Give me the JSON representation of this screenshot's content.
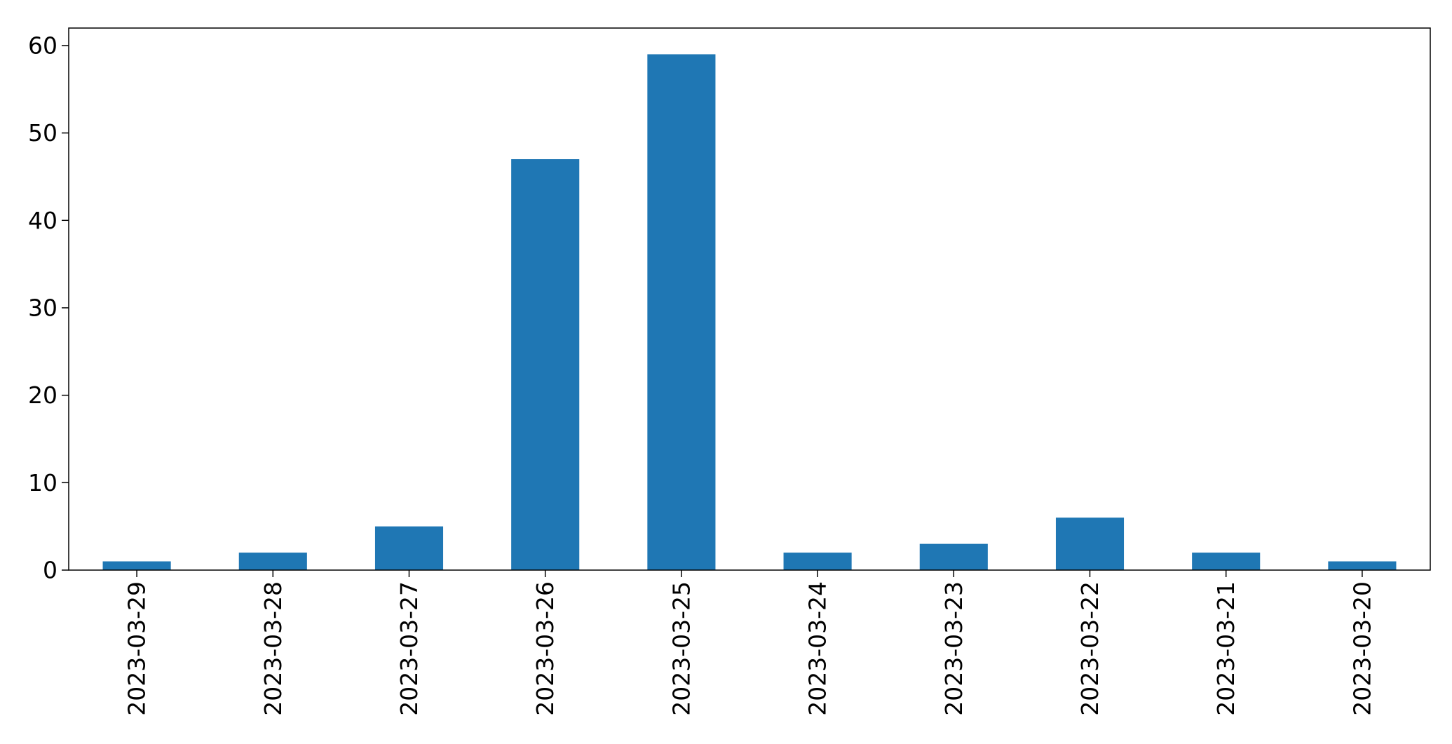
{
  "chart_data": {
    "type": "bar",
    "categories": [
      "2023-03-29",
      "2023-03-28",
      "2023-03-27",
      "2023-03-26",
      "2023-03-25",
      "2023-03-24",
      "2023-03-23",
      "2023-03-22",
      "2023-03-21",
      "2023-03-20"
    ],
    "values": [
      1,
      2,
      5,
      47,
      59,
      2,
      3,
      6,
      2,
      1
    ],
    "title": "",
    "xlabel": "",
    "ylabel": "",
    "ylim": [
      0,
      62
    ],
    "yticks": [
      0,
      10,
      20,
      30,
      40,
      50,
      60
    ],
    "ytick_labels": [
      "0",
      "10",
      "20",
      "30",
      "40",
      "50",
      "60"
    ],
    "grid": false,
    "legend": "none",
    "bar_color": "#1f77b4",
    "x_label_rotation": "vertical"
  }
}
